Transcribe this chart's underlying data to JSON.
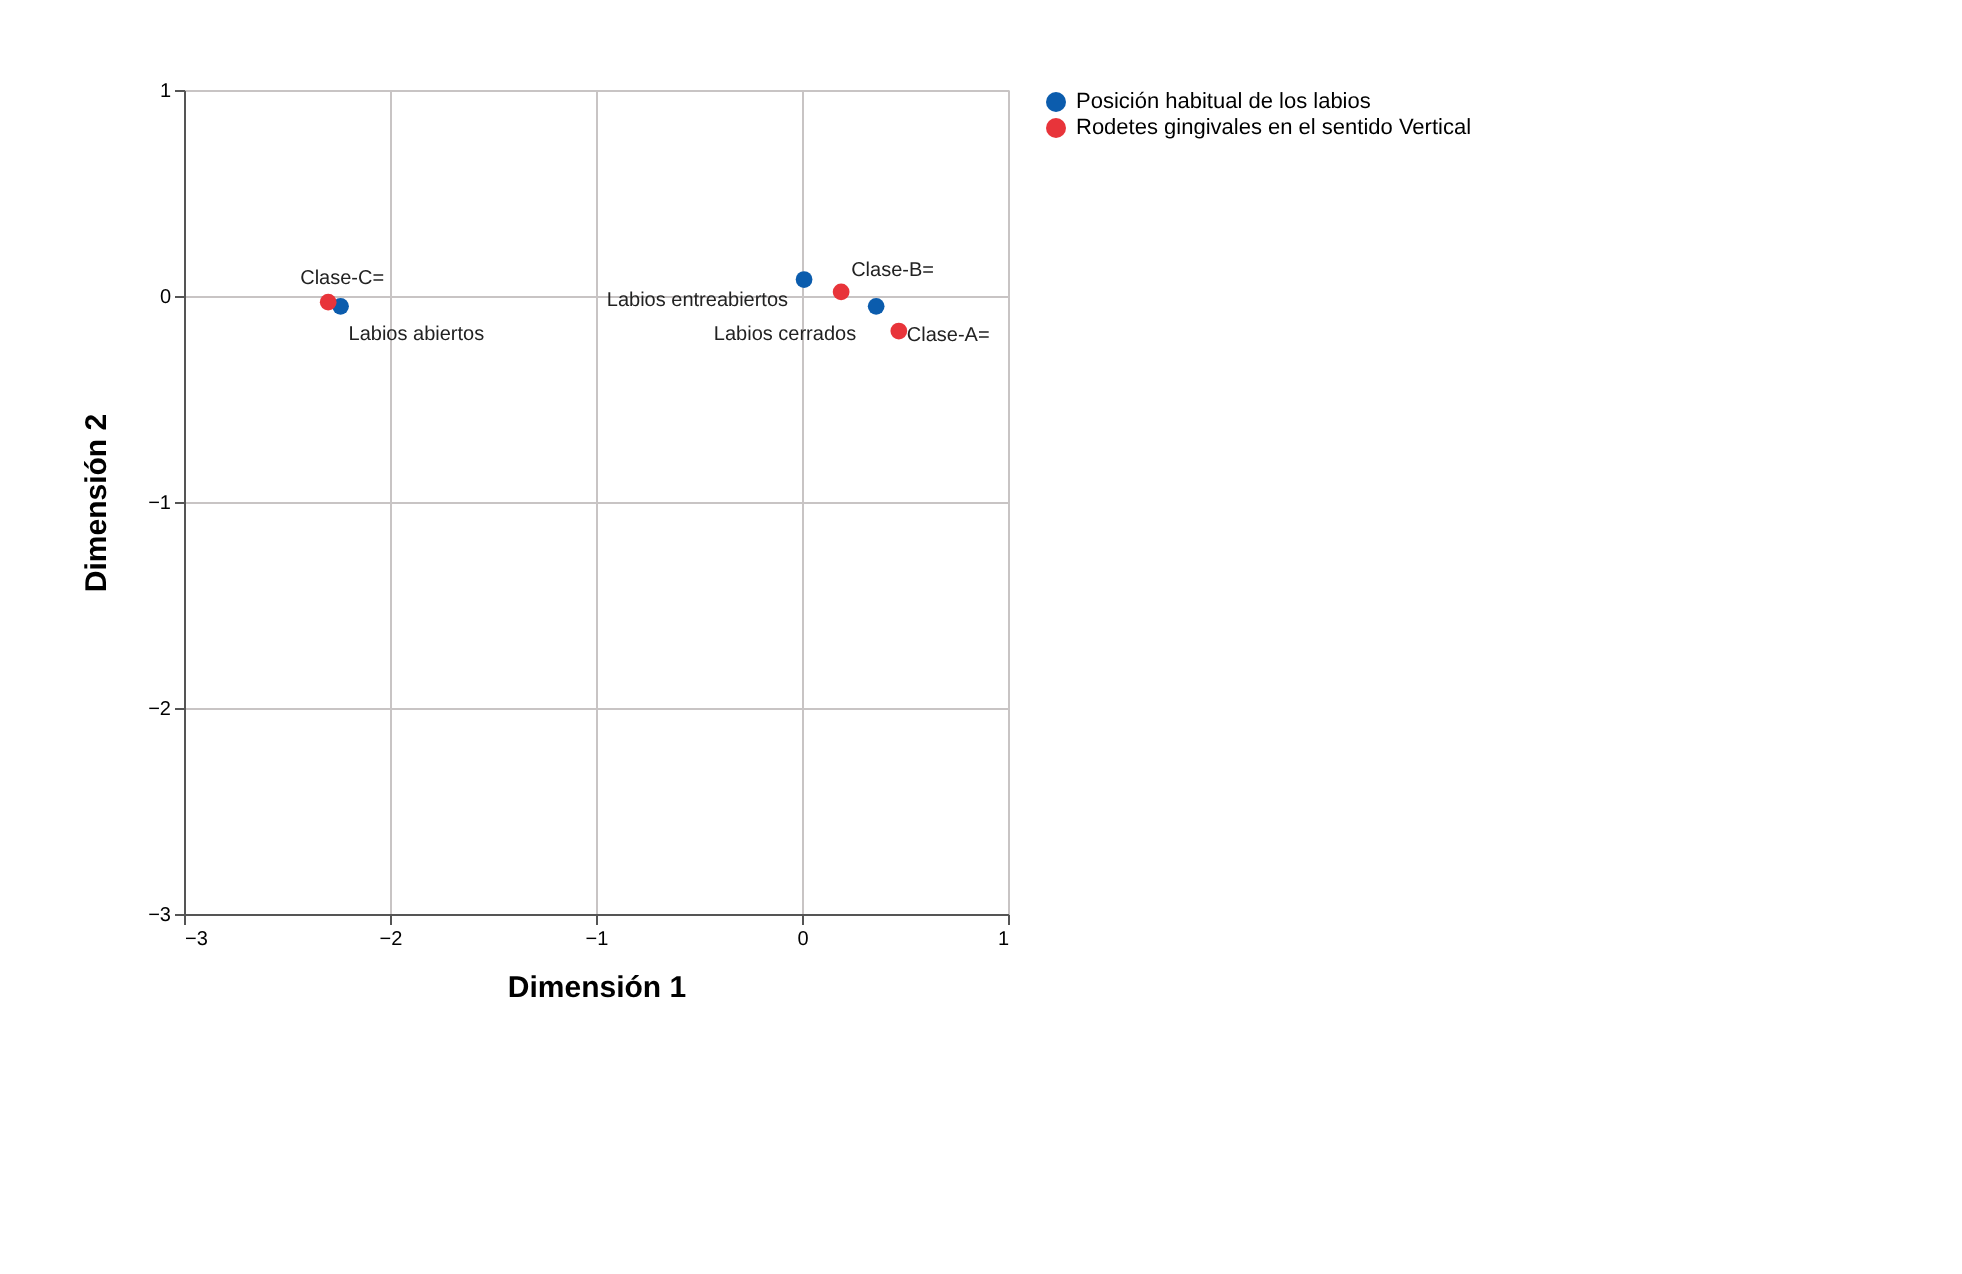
{
  "chart_data": {
    "type": "scatter",
    "xlabel": "Dimensión 1",
    "ylabel": "Dimensión 2",
    "series": [
      {
        "name": "Posición habitual de los labios",
        "color": "#0b5cad",
        "x": [
          -2.24,
          0.01,
          0.36
        ],
        "values": [
          -0.05,
          0.08,
          -0.05
        ]
      },
      {
        "name": "Rodetes gingivales en el sentido Vertical",
        "color": "#e8343a",
        "x": [
          -2.3,
          0.19,
          0.47
        ],
        "values": [
          -0.03,
          0.02,
          -0.17
        ]
      }
    ],
    "annotations": [
      {
        "text": "Labios abiertos",
        "x": -2.24,
        "y": -0.05
      },
      {
        "text": "Labios entreabiertos",
        "x": 0.01,
        "y": 0.08
      },
      {
        "text": "Labios cerrados",
        "x": 0.36,
        "y": -0.05
      },
      {
        "text": "Clase-C=",
        "x": -2.3,
        "y": -0.03
      },
      {
        "text": "Clase-B=",
        "x": 0.19,
        "y": 0.02
      },
      {
        "text": "Clase-A=",
        "x": 0.47,
        "y": -0.17
      }
    ],
    "xlim": [
      -3,
      1
    ],
    "ylim": [
      -3,
      1
    ],
    "xticks": [
      -3,
      -2,
      -1,
      0,
      1
    ],
    "yticks": [
      -3,
      -2,
      -1,
      0,
      1
    ],
    "grid": true,
    "legend": "top right",
    "marker": "circle"
  }
}
